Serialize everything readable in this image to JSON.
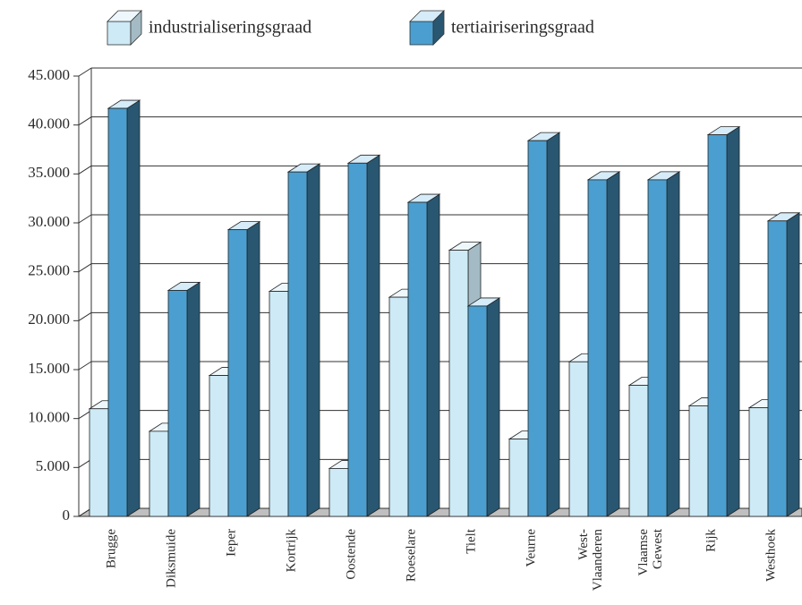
{
  "chart_data": {
    "type": "bar3d",
    "categories": [
      "Brugge",
      "Diksmuide",
      "Ieper",
      "Kortrijk",
      "Oostende",
      "Roeselare",
      "Tielt",
      "Veurne",
      [
        "West-",
        "Vlaanderen"
      ],
      [
        "Vlaamse",
        "Gewest"
      ],
      "Rijk",
      "Westhoek"
    ],
    "series": [
      {
        "name": "industrialiseringsgraad",
        "color": "#cdeaf6",
        "values": [
          11000,
          8700,
          14400,
          23000,
          4900,
          22400,
          27200,
          7900,
          15800,
          13400,
          11300,
          11100
        ]
      },
      {
        "name": "tertiairiseringsgraad",
        "color": "#4a9fd0",
        "values": [
          41700,
          23100,
          29300,
          35200,
          36100,
          32100,
          21500,
          38400,
          34400,
          34400,
          39000,
          30200
        ]
      }
    ],
    "ylim": [
      0,
      45000
    ],
    "yticks": [
      0,
      {
        "value": 5000,
        "label": "5.000"
      },
      {
        "value": 10000,
        "label": "10.000"
      },
      {
        "value": 15000,
        "label": "15.000"
      },
      {
        "value": 20000,
        "label": "20.000"
      },
      {
        "value": 25000,
        "label": "25.000"
      },
      {
        "value": 30000,
        "label": "30.000"
      },
      {
        "value": 35000,
        "label": "35.000"
      },
      {
        "value": 40000,
        "label": "40.000"
      },
      {
        "value": 45000,
        "label": "45.000"
      }
    ],
    "grid": true,
    "legend": "top"
  }
}
